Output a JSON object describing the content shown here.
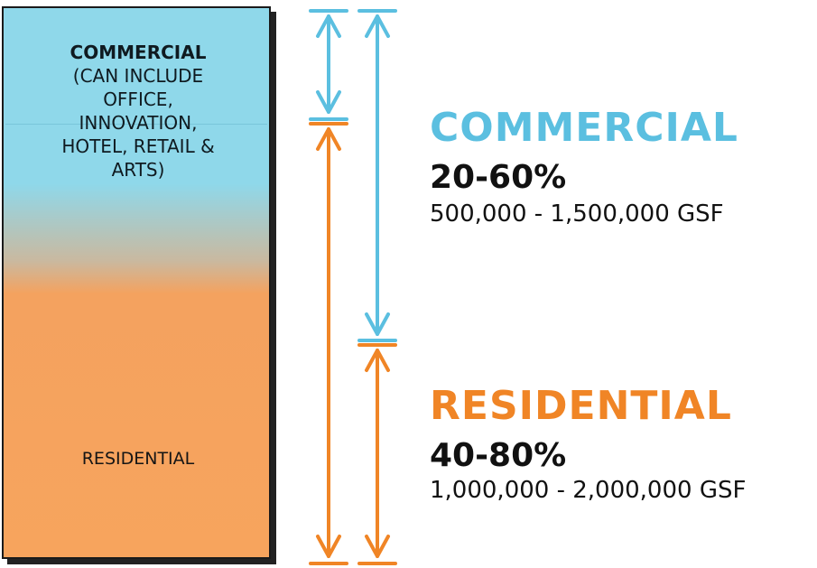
{
  "bar": {
    "commercial_title": "COMMERCIAL",
    "commercial_lines": [
      "(CAN INCLUDE",
      "OFFICE,",
      "INNOVATION,",
      "HOTEL, RETAIL &",
      "ARTS)"
    ],
    "residential_label": "RESIDENTIAL"
  },
  "commercial": {
    "heading": "COMMERCIAL",
    "percent": "20-60%",
    "gsf": "500,000 - 1,500,000 GSF",
    "color": "#5bbfe0"
  },
  "residential": {
    "heading": "RESIDENTIAL",
    "percent": "40-80%",
    "gsf": "1,000,000 - 2,000,000 GSF",
    "color": "#f08526"
  }
}
